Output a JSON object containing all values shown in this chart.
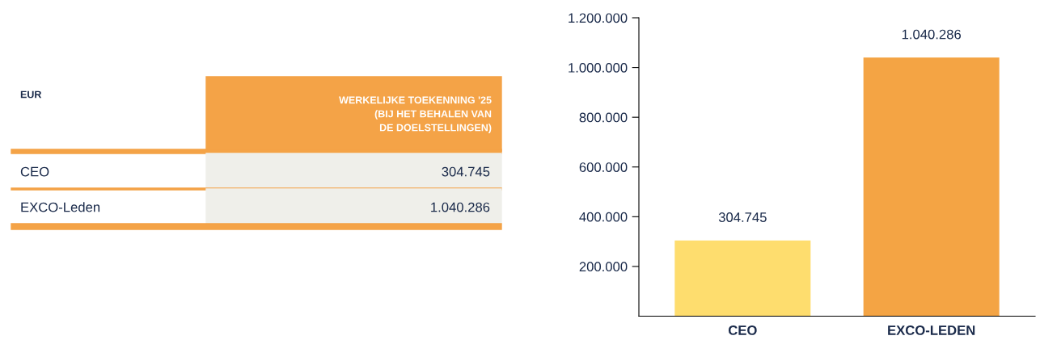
{
  "chart_data": [
    {
      "type": "other",
      "annotations": [
        "EUR",
        "WERKELIJKE TOEKENNING '25\n(BIJ HET BEHALEN VAN\nDE DOELSTELLINGEN)"
      ],
      "categories": [
        "CEO",
        "EXCO-Leden"
      ],
      "values": [
        304745,
        1040286
      ],
      "value_labels": [
        "304.745",
        "1.040.286"
      ],
      "colors": [
        "#efefea",
        "#efefea"
      ]
    },
    {
      "type": "bar",
      "categories": [
        "CEO",
        "EXCO-LEDEN"
      ],
      "values": [
        304745,
        1040286
      ],
      "colors": [
        "#fedd6e",
        "#f4a444"
      ],
      "value_labels": [
        "304.745",
        "1.040.286"
      ],
      "ylim": [
        0,
        1200000
      ],
      "yticks": [
        {
          "value": 200000,
          "label": "200.000"
        },
        {
          "value": 400000,
          "label": "400.000"
        },
        {
          "value": 600000,
          "label": "600.000"
        },
        {
          "value": 800000,
          "label": "800.000"
        },
        {
          "value": 1000000,
          "label": "1.000.000"
        },
        {
          "value": 1200000,
          "label": "1.200.000"
        }
      ],
      "grid": false,
      "legend": false
    }
  ]
}
